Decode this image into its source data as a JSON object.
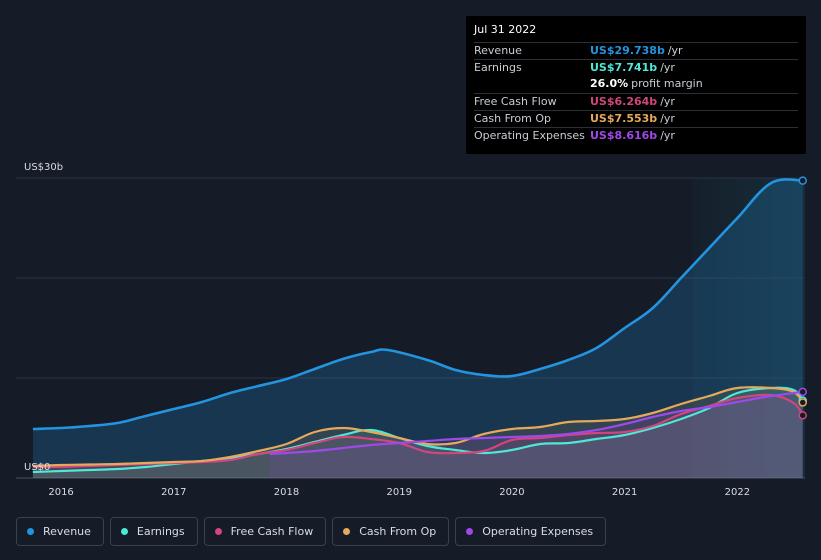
{
  "chart_data": {
    "type": "area",
    "ylabel_top": "US$30b",
    "ylabel_bottom": "US$0",
    "ylim": [
      0,
      30
    ],
    "x_ticks": [
      "2016",
      "2017",
      "2018",
      "2019",
      "2020",
      "2021",
      "2022"
    ],
    "x_range": [
      2015.6,
      2022.6
    ],
    "forecast_start": 2021.6,
    "series": [
      {
        "name": "Revenue",
        "color": "#2394df",
        "points": [
          [
            2015.75,
            4.9
          ],
          [
            2016.0,
            5.0
          ],
          [
            2016.25,
            5.2
          ],
          [
            2016.5,
            5.5
          ],
          [
            2016.75,
            6.2
          ],
          [
            2017.0,
            6.9
          ],
          [
            2017.25,
            7.6
          ],
          [
            2017.5,
            8.5
          ],
          [
            2017.75,
            9.2
          ],
          [
            2018.0,
            9.9
          ],
          [
            2018.25,
            10.9
          ],
          [
            2018.5,
            11.9
          ],
          [
            2018.75,
            12.6
          ],
          [
            2018.9,
            12.8
          ],
          [
            2019.25,
            11.8
          ],
          [
            2019.5,
            10.8
          ],
          [
            2019.75,
            10.3
          ],
          [
            2020.0,
            10.2
          ],
          [
            2020.25,
            10.9
          ],
          [
            2020.5,
            11.8
          ],
          [
            2020.75,
            13.0
          ],
          [
            2021.0,
            15.0
          ],
          [
            2021.25,
            17.0
          ],
          [
            2021.5,
            20.0
          ],
          [
            2021.75,
            23.0
          ],
          [
            2022.0,
            26.0
          ],
          [
            2022.3,
            29.5
          ],
          [
            2022.58,
            29.738
          ]
        ]
      },
      {
        "name": "Earnings",
        "color": "#4ee8d6",
        "points": [
          [
            2015.75,
            0.6
          ],
          [
            2016.0,
            0.7
          ],
          [
            2016.25,
            0.8
          ],
          [
            2016.5,
            0.9
          ],
          [
            2016.75,
            1.1
          ],
          [
            2017.0,
            1.4
          ],
          [
            2017.25,
            1.7
          ],
          [
            2017.5,
            2.0
          ],
          [
            2017.75,
            2.4
          ],
          [
            2018.0,
            2.9
          ],
          [
            2018.25,
            3.6
          ],
          [
            2018.5,
            4.3
          ],
          [
            2018.75,
            4.8
          ],
          [
            2019.0,
            4.0
          ],
          [
            2019.25,
            3.2
          ],
          [
            2019.5,
            2.8
          ],
          [
            2019.75,
            2.5
          ],
          [
            2020.0,
            2.8
          ],
          [
            2020.25,
            3.4
          ],
          [
            2020.5,
            3.5
          ],
          [
            2020.75,
            3.9
          ],
          [
            2021.0,
            4.3
          ],
          [
            2021.25,
            5.0
          ],
          [
            2021.5,
            5.9
          ],
          [
            2021.75,
            7.0
          ],
          [
            2022.0,
            8.5
          ],
          [
            2022.3,
            9.0
          ],
          [
            2022.5,
            8.8
          ],
          [
            2022.58,
            7.741
          ]
        ]
      },
      {
        "name": "Free Cash Flow",
        "color": "#d2457f",
        "points": [
          [
            2015.75,
            1.1
          ],
          [
            2016.0,
            1.1
          ],
          [
            2016.25,
            1.2
          ],
          [
            2016.5,
            1.3
          ],
          [
            2016.75,
            1.4
          ],
          [
            2017.0,
            1.5
          ],
          [
            2017.25,
            1.6
          ],
          [
            2017.5,
            1.8
          ],
          [
            2017.75,
            2.4
          ],
          [
            2018.0,
            2.8
          ],
          [
            2018.25,
            3.5
          ],
          [
            2018.5,
            4.1
          ],
          [
            2018.75,
            3.9
          ],
          [
            2019.0,
            3.5
          ],
          [
            2019.25,
            2.6
          ],
          [
            2019.5,
            2.5
          ],
          [
            2019.75,
            2.7
          ],
          [
            2020.0,
            3.8
          ],
          [
            2020.25,
            4.0
          ],
          [
            2020.5,
            4.3
          ],
          [
            2020.75,
            4.5
          ],
          [
            2021.0,
            4.6
          ],
          [
            2021.25,
            5.2
          ],
          [
            2021.5,
            6.4
          ],
          [
            2021.75,
            7.2
          ],
          [
            2022.0,
            8.0
          ],
          [
            2022.3,
            8.3
          ],
          [
            2022.5,
            7.5
          ],
          [
            2022.58,
            6.264
          ]
        ]
      },
      {
        "name": "Cash From Op",
        "color": "#e6a95c",
        "points": [
          [
            2015.75,
            1.2
          ],
          [
            2016.0,
            1.3
          ],
          [
            2016.25,
            1.35
          ],
          [
            2016.5,
            1.4
          ],
          [
            2016.75,
            1.5
          ],
          [
            2017.0,
            1.6
          ],
          [
            2017.25,
            1.7
          ],
          [
            2017.5,
            2.1
          ],
          [
            2017.75,
            2.7
          ],
          [
            2018.0,
            3.4
          ],
          [
            2018.25,
            4.6
          ],
          [
            2018.5,
            5.0
          ],
          [
            2018.75,
            4.6
          ],
          [
            2019.0,
            4.0
          ],
          [
            2019.25,
            3.4
          ],
          [
            2019.5,
            3.5
          ],
          [
            2019.75,
            4.4
          ],
          [
            2020.0,
            4.9
          ],
          [
            2020.25,
            5.1
          ],
          [
            2020.5,
            5.6
          ],
          [
            2020.75,
            5.7
          ],
          [
            2021.0,
            5.9
          ],
          [
            2021.25,
            6.5
          ],
          [
            2021.5,
            7.4
          ],
          [
            2021.75,
            8.2
          ],
          [
            2022.0,
            9.0
          ],
          [
            2022.3,
            9.0
          ],
          [
            2022.5,
            8.6
          ],
          [
            2022.58,
            7.553
          ]
        ]
      },
      {
        "name": "Operating Expenses",
        "color": "#9f49e8",
        "points": [
          [
            2017.85,
            2.4
          ],
          [
            2018.0,
            2.5
          ],
          [
            2018.25,
            2.7
          ],
          [
            2018.5,
            3.0
          ],
          [
            2018.75,
            3.3
          ],
          [
            2019.0,
            3.5
          ],
          [
            2019.25,
            3.7
          ],
          [
            2019.5,
            3.9
          ],
          [
            2019.75,
            4.0
          ],
          [
            2020.0,
            4.1
          ],
          [
            2020.25,
            4.2
          ],
          [
            2020.5,
            4.4
          ],
          [
            2020.75,
            4.8
          ],
          [
            2021.0,
            5.4
          ],
          [
            2021.25,
            6.1
          ],
          [
            2021.5,
            6.7
          ],
          [
            2021.75,
            7.1
          ],
          [
            2022.0,
            7.6
          ],
          [
            2022.3,
            8.2
          ],
          [
            2022.58,
            8.616
          ]
        ]
      }
    ]
  },
  "tooltip": {
    "date": "Jul 31 2022",
    "rows": [
      {
        "label": "Revenue",
        "value": "US$29.738b",
        "unit": "/yr",
        "color": "#2394df"
      },
      {
        "label": "Earnings",
        "value": "US$7.741b",
        "unit": "/yr",
        "color": "#4ee8d6"
      },
      {
        "label": "",
        "value": "26.0%",
        "unit": "profit margin",
        "color": "#ffffff"
      },
      {
        "label": "Free Cash Flow",
        "value": "US$6.264b",
        "unit": "/yr",
        "color": "#d2457f"
      },
      {
        "label": "Cash From Op",
        "value": "US$7.553b",
        "unit": "/yr",
        "color": "#e6a95c"
      },
      {
        "label": "Operating Expenses",
        "value": "US$8.616b",
        "unit": "/yr",
        "color": "#9f49e8"
      }
    ]
  },
  "legend": [
    {
      "label": "Revenue",
      "color": "#2394df"
    },
    {
      "label": "Earnings",
      "color": "#4ee8d6"
    },
    {
      "label": "Free Cash Flow",
      "color": "#d2457f"
    },
    {
      "label": "Cash From Op",
      "color": "#e6a95c"
    },
    {
      "label": "Operating Expenses",
      "color": "#9f49e8"
    }
  ]
}
